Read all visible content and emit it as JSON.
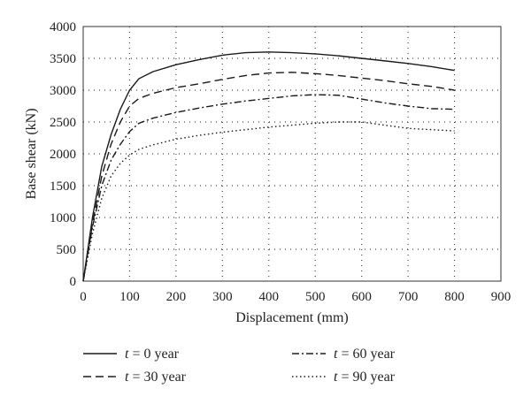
{
  "chart_data": {
    "type": "line",
    "xlabel": "Displacement (mm)",
    "ylabel": "Base shear (kN)",
    "xlim": [
      0,
      900
    ],
    "ylim": [
      0,
      4000
    ],
    "xticks": [
      "0",
      "100",
      "200",
      "300",
      "400",
      "500",
      "600",
      "700",
      "800",
      "900"
    ],
    "yticks": [
      "0",
      "500",
      "1000",
      "1500",
      "2000",
      "2500",
      "3000",
      "3500",
      "4000"
    ],
    "grid": true,
    "legend_position": "bottom",
    "series": [
      {
        "name": "t = 0 year",
        "var": "t",
        "suffix": " = 0 year",
        "dash": "",
        "x": [
          0,
          20,
          40,
          60,
          80,
          100,
          120,
          150,
          200,
          250,
          300,
          350,
          400,
          450,
          500,
          550,
          600,
          650,
          700,
          750,
          800
        ],
        "y": [
          0,
          1000,
          1800,
          2300,
          2700,
          3000,
          3180,
          3290,
          3400,
          3480,
          3550,
          3590,
          3600,
          3590,
          3570,
          3540,
          3500,
          3460,
          3420,
          3370,
          3310
        ]
      },
      {
        "name": "t = 30 year",
        "var": "t",
        "suffix": " = 30 year",
        "dash": "9 5",
        "x": [
          0,
          20,
          40,
          60,
          80,
          100,
          120,
          150,
          200,
          250,
          300,
          350,
          400,
          450,
          500,
          550,
          600,
          650,
          700,
          750,
          800
        ],
        "y": [
          0,
          900,
          1650,
          2150,
          2500,
          2750,
          2870,
          2950,
          3040,
          3100,
          3170,
          3230,
          3270,
          3280,
          3260,
          3230,
          3190,
          3150,
          3100,
          3060,
          3000
        ]
      },
      {
        "name": "t = 60 year",
        "var": "t",
        "suffix": " = 60 year",
        "dash": "8 3 2 3",
        "x": [
          0,
          20,
          40,
          60,
          80,
          100,
          120,
          150,
          200,
          250,
          300,
          350,
          400,
          450,
          500,
          550,
          600,
          650,
          700,
          750,
          800
        ],
        "y": [
          0,
          850,
          1500,
          1900,
          2150,
          2350,
          2480,
          2560,
          2650,
          2720,
          2780,
          2830,
          2870,
          2910,
          2930,
          2920,
          2860,
          2800,
          2750,
          2710,
          2700
        ]
      },
      {
        "name": "t = 90 year",
        "var": "t",
        "suffix": " = 90 year",
        "dash": "1.5 3",
        "x": [
          0,
          20,
          40,
          60,
          80,
          100,
          120,
          150,
          200,
          250,
          300,
          350,
          400,
          450,
          500,
          550,
          600,
          650,
          700,
          750,
          800
        ],
        "y": [
          0,
          750,
          1300,
          1650,
          1850,
          1980,
          2070,
          2140,
          2230,
          2290,
          2340,
          2380,
          2420,
          2450,
          2480,
          2500,
          2500,
          2450,
          2400,
          2380,
          2360
        ]
      }
    ]
  }
}
